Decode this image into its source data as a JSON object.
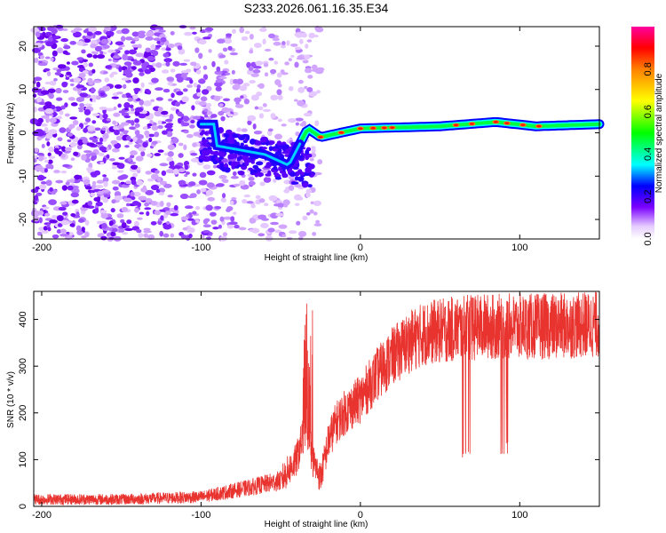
{
  "title": "S233.2026.061.16.35.E34",
  "chart_data": [
    {
      "type": "heatmap",
      "title": "S233.2026.061.16.35.E34",
      "xlabel": "Height of straight line (km)",
      "ylabel": "Frequency (Hz)",
      "xlim": [
        -205,
        150
      ],
      "ylim": [
        -24.5,
        24.5
      ],
      "xticks": [
        -200,
        -100,
        0,
        100
      ],
      "yticks": [
        -20,
        -10,
        0,
        10,
        20
      ],
      "colorbar": {
        "label": "Normalized spectral amplitude",
        "range": [
          0.0,
          1.0
        ],
        "ticks": [
          0.0,
          0.2,
          0.4,
          0.6,
          0.8
        ]
      },
      "ridge": {
        "description_points": [
          {
            "x": -90,
            "y": -3
          },
          {
            "x": -60,
            "y": -5
          },
          {
            "x": -45,
            "y": -7.5
          },
          {
            "x": -33,
            "y": 1
          },
          {
            "x": -25,
            "y": -1
          },
          {
            "x": 0,
            "y": 1
          },
          {
            "x": 50,
            "y": 1.5
          },
          {
            "x": 85,
            "y": 2.5
          },
          {
            "x": 110,
            "y": 1.5
          },
          {
            "x": 150,
            "y": 2
          }
        ]
      }
    },
    {
      "type": "line",
      "xlabel": "Height of straight line (km)",
      "ylabel": "SNR (10 * v/v)",
      "xlim": [
        -205,
        150
      ],
      "ylim": [
        0,
        460
      ],
      "xticks": [
        -200,
        -100,
        0,
        100
      ],
      "yticks": [
        0,
        100,
        200,
        300,
        400
      ],
      "color": "#e8332f",
      "series": [
        {
          "name": "SNR",
          "x": [
            -205,
            -150,
            -100,
            -70,
            -50,
            -40,
            -34,
            -30,
            -25,
            -20,
            -15,
            -10,
            0,
            10,
            20,
            30,
            40,
            50,
            60,
            80,
            100,
            120,
            150
          ],
          "y": [
            15,
            15,
            20,
            40,
            55,
            100,
            180,
            100,
            60,
            140,
            180,
            200,
            230,
            280,
            320,
            350,
            370,
            375,
            380,
            385,
            385,
            385,
            390
          ]
        }
      ],
      "annotations": {
        "spike_near": -33,
        "spike_peak": 435,
        "dips": [
          {
            "x": 67,
            "y": 95
          },
          {
            "x": 91,
            "y": 108
          }
        ]
      }
    }
  ]
}
